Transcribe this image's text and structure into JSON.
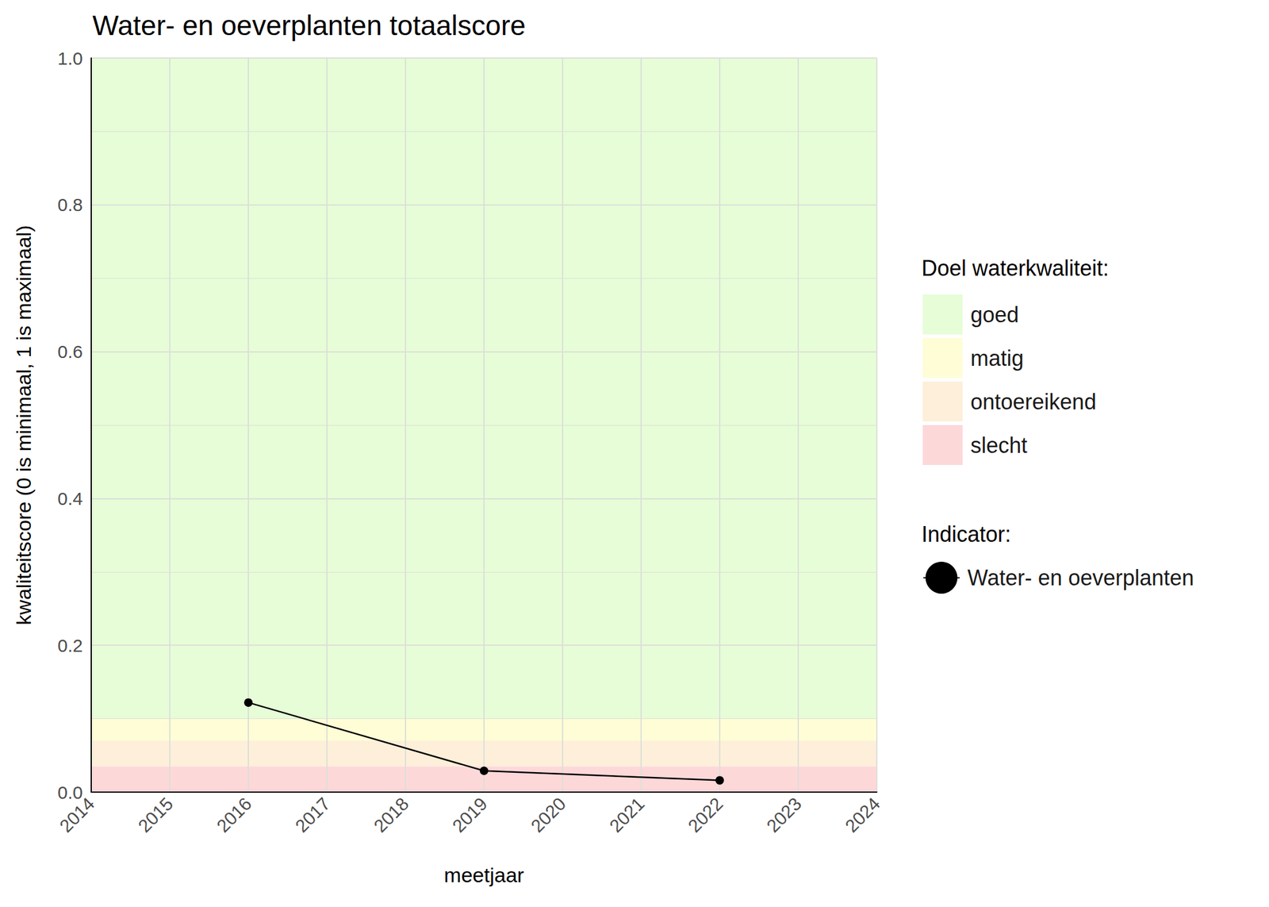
{
  "chart_data": {
    "type": "line",
    "title": "Water- en oeverplanten totaalscore",
    "x_label": "meetjaar",
    "y_label": "kwaliteitscore (0 is minimaal, 1 is maximaal)",
    "x": [
      2016,
      2019,
      2022
    ],
    "series": [
      {
        "name": "Water- en oeverplanten",
        "color": "#000000",
        "marker": "circle",
        "line_style": "solid",
        "values": [
          0.122,
          0.029,
          0.016
        ]
      }
    ],
    "xlim": [
      2014,
      2024
    ],
    "xticks": [
      2014,
      2015,
      2016,
      2017,
      2018,
      2019,
      2020,
      2021,
      2022,
      2023,
      2024
    ],
    "ylim": [
      0,
      1
    ],
    "yticks": [
      {
        "value": 0,
        "label": "0.0"
      },
      0.2,
      0.4,
      0.6,
      0.8,
      {
        "value": 1,
        "label": "1.0"
      }
    ],
    "grid": true,
    "bands_title": "Doel waterkwaliteit:",
    "series_legend_title": "Indicator:",
    "bands": [
      {
        "name": "goed",
        "from": 0.1,
        "to": 1,
        "color": "#e6fdd7"
      },
      {
        "name": "matig",
        "from": 0.07,
        "to": 0.1,
        "color": "#fefdd6"
      },
      {
        "name": "ontoereikend",
        "from": 0.035,
        "to": 0.07,
        "color": "#fdefd9"
      },
      {
        "name": "slecht",
        "from": 0,
        "to": 0.035,
        "color": "#fdd8d9"
      }
    ],
    "legend": "right"
  }
}
